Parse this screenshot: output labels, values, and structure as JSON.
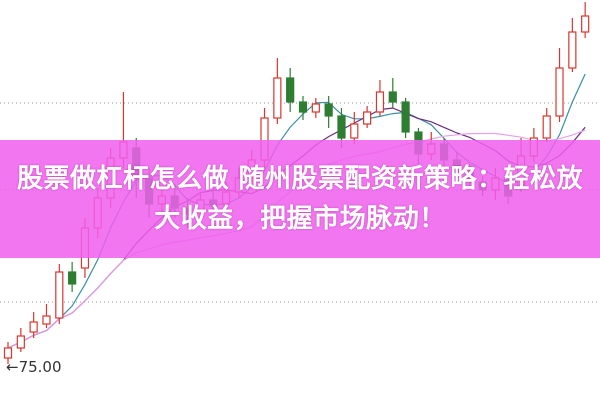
{
  "headline": {
    "line1": "股票做杠杆怎么做 随州股票配资新策略：轻松放",
    "line2": "大收益，把握市场脉动！"
  },
  "colors": {
    "up": "#d9362f",
    "down": "#2e7d32",
    "banner": "#f060ee",
    "ma5": "#3a8fa0",
    "ma10": "#6b2c7f",
    "ma20": "#e6a0e6",
    "grid": "#999999"
  },
  "chart_data": {
    "type": "candlestick",
    "price_label": "←75.00",
    "ylim": [
      73.35,
      93.4
    ],
    "gridlines": [
      88.25,
      83.9,
      78.3
    ],
    "moving_averages": [
      5,
      10,
      20
    ],
    "ohlc": [
      [
        75.5,
        76,
        76.3,
        75.2
      ],
      [
        76,
        76.6,
        77,
        75.8
      ],
      [
        76.8,
        77.3,
        77.8,
        76.5
      ],
      [
        77.2,
        77.6,
        78.2,
        77
      ],
      [
        77.5,
        79.8,
        80.2,
        77.2
      ],
      [
        79.8,
        79.2,
        80.3,
        78.8
      ],
      [
        80,
        82,
        82.5,
        79.5
      ],
      [
        82,
        83.5,
        84,
        81.5
      ],
      [
        83.5,
        85.5,
        86,
        83
      ],
      [
        85.5,
        86.3,
        88.8,
        85
      ],
      [
        86,
        84.5,
        86.5,
        83.5
      ],
      [
        84.5,
        83.2,
        85,
        82.5
      ],
      [
        83.2,
        83.6,
        84,
        82.8
      ],
      [
        83.6,
        83,
        84.2,
        82.5
      ],
      [
        83,
        82.7,
        83.5,
        82
      ],
      [
        82.8,
        83.4,
        83.8,
        82.5
      ],
      [
        83.4,
        83.1,
        84,
        82.8
      ],
      [
        83.2,
        83.8,
        84.3,
        83
      ],
      [
        83.8,
        84.5,
        85,
        83.5
      ],
      [
        84.5,
        85.4,
        85.9,
        84.3
      ],
      [
        85.4,
        87.5,
        88,
        85
      ],
      [
        87.5,
        89.5,
        90.5,
        87.2
      ],
      [
        89.5,
        88.3,
        90,
        87.8
      ],
      [
        88.3,
        87.8,
        88.6,
        87.4
      ],
      [
        87.8,
        88.2,
        88.5,
        87.5
      ],
      [
        88.2,
        87.6,
        88.6,
        87
      ],
      [
        87.6,
        86.5,
        88,
        86
      ],
      [
        86.5,
        87.2,
        87.8,
        86.2
      ],
      [
        87.2,
        87.8,
        88.1,
        87
      ],
      [
        87.8,
        88.8,
        89.4,
        87.6
      ],
      [
        88.8,
        88.3,
        89.5,
        88
      ],
      [
        88.3,
        86.8,
        88.5,
        86.5
      ],
      [
        86.8,
        85.7,
        87,
        85.2
      ],
      [
        85.7,
        86.2,
        86.8,
        85.4
      ],
      [
        86.2,
        85.4,
        86.5,
        85
      ],
      [
        85.4,
        84.8,
        85.8,
        84.5
      ],
      [
        84.8,
        84.3,
        85.2,
        84
      ],
      [
        84.3,
        83.9,
        84.6,
        83.6
      ],
      [
        83.9,
        84.5,
        85,
        83.4
      ],
      [
        84.5,
        83.6,
        84.8,
        83.2
      ],
      [
        84,
        85.6,
        86.5,
        83.8
      ],
      [
        85.6,
        86.5,
        87,
        85.3
      ],
      [
        86.5,
        87.6,
        88,
        86.3
      ],
      [
        87.6,
        90,
        91,
        87.3
      ],
      [
        90,
        91.8,
        92.5,
        89.8
      ],
      [
        91.8,
        92.6,
        93.3,
        91.5
      ]
    ]
  }
}
